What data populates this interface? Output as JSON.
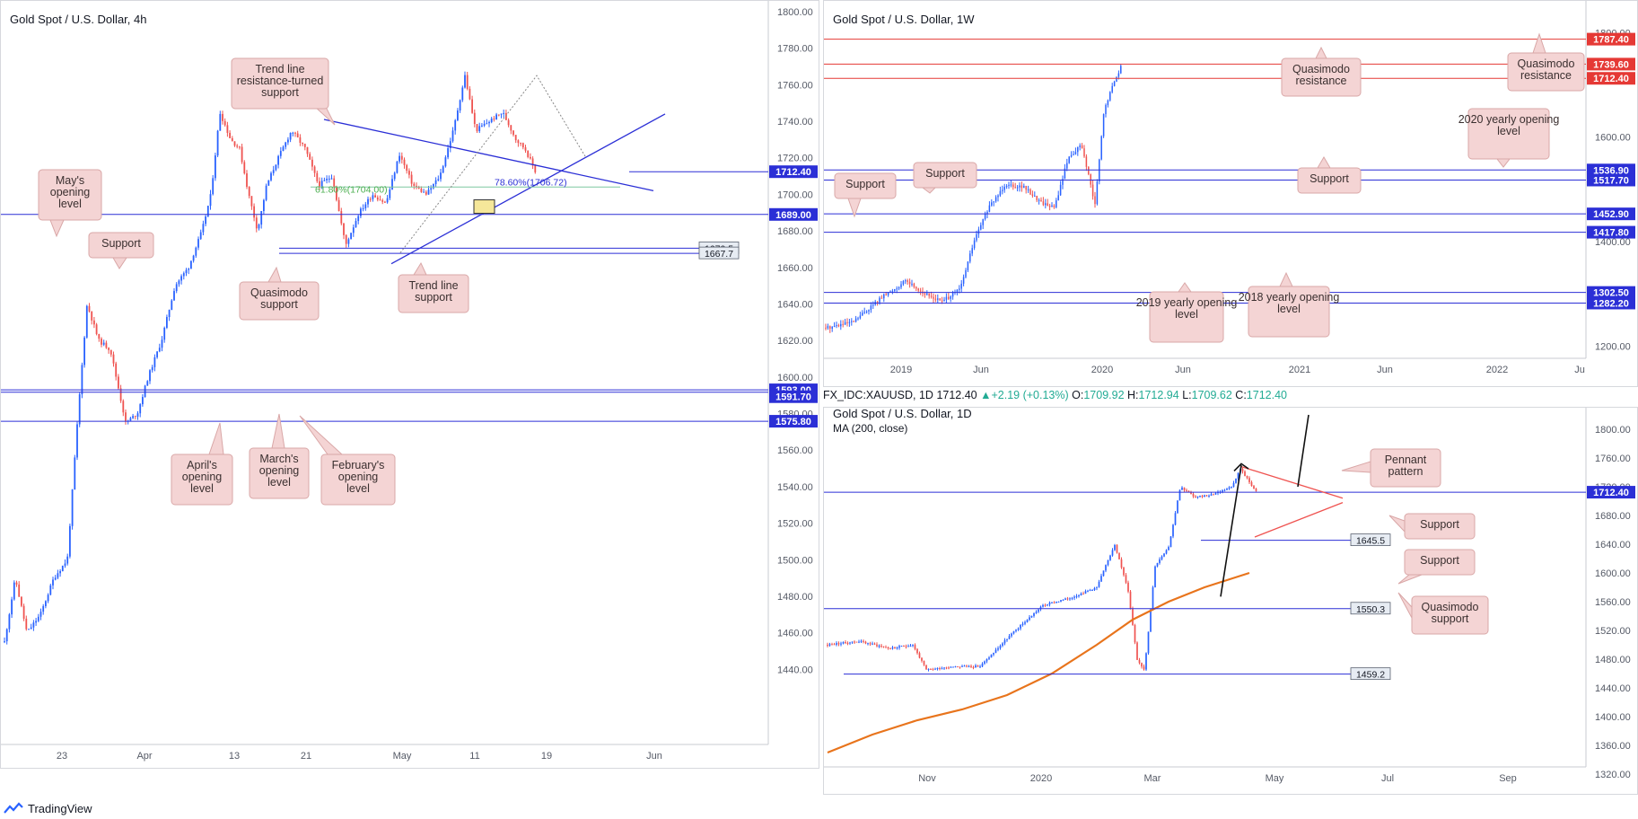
{
  "brand": {
    "name": "TradingView",
    "logo_icon": "tradingview-logo-icon"
  },
  "infobar": {
    "symbol": "FX_IDC:XAUUSD, 1D",
    "last": "1712.40",
    "change": "▲+2.19 (+0.13%)",
    "o_label": "O:",
    "o": "1709.92",
    "h_label": "H:",
    "h": "1712.94",
    "l_label": "L:",
    "l": "1709.62",
    "c_label": "C:",
    "c": "1712.40"
  },
  "colors": {
    "up": "#2962ff",
    "down": "#ef5350",
    "level": "#2b2fd6",
    "resistance": "#e53935",
    "callout_fill": "#f4d4d4",
    "callout_border": "#d9a7a7",
    "ma": "#e8741c"
  },
  "chart_data": [
    {
      "id": "h4",
      "type": "candlestick",
      "title": "Gold Spot / U.S. Dollar, 4h",
      "ylim": [
        1420,
        1800
      ],
      "yticks": [
        "1800.00",
        "1780.00",
        "1760.00",
        "1740.00",
        "1720.00",
        "1700.00",
        "1680.00",
        "1660.00",
        "1640.00",
        "1620.00",
        "1600.00",
        "1580.00",
        "1560.00",
        "1540.00",
        "1520.00",
        "1500.00",
        "1480.00",
        "1460.00",
        "1440.00"
      ],
      "xticks": [
        "23",
        "Apr",
        "13",
        "21",
        "May",
        "11",
        "19",
        "Jun"
      ],
      "price_path": [
        [
          0,
          1455
        ],
        [
          12,
          1490
        ],
        [
          25,
          1460
        ],
        [
          40,
          1470
        ],
        [
          55,
          1490
        ],
        [
          70,
          1500
        ],
        [
          82,
          1580
        ],
        [
          92,
          1640
        ],
        [
          105,
          1620
        ],
        [
          118,
          1615
        ],
        [
          135,
          1575
        ],
        [
          148,
          1580
        ],
        [
          160,
          1600
        ],
        [
          175,
          1620
        ],
        [
          190,
          1650
        ],
        [
          205,
          1660
        ],
        [
          220,
          1680
        ],
        [
          230,
          1700
        ],
        [
          240,
          1745
        ],
        [
          252,
          1730
        ],
        [
          262,
          1725
        ],
        [
          272,
          1700
        ],
        [
          282,
          1680
        ],
        [
          292,
          1705
        ],
        [
          305,
          1720
        ],
        [
          320,
          1735
        ],
        [
          335,
          1725
        ],
        [
          350,
          1705
        ],
        [
          365,
          1710
        ],
        [
          380,
          1672
        ],
        [
          395,
          1690
        ],
        [
          410,
          1700
        ],
        [
          425,
          1695
        ],
        [
          440,
          1722
        ],
        [
          455,
          1705
        ],
        [
          470,
          1700
        ],
        [
          485,
          1710
        ],
        [
          500,
          1735
        ],
        [
          513,
          1765
        ],
        [
          525,
          1735
        ],
        [
          540,
          1740
        ],
        [
          555,
          1745
        ],
        [
          570,
          1730
        ],
        [
          580,
          1725
        ],
        [
          592,
          1712
        ]
      ],
      "levels": [
        {
          "value": 1712.4,
          "label": "1712.40",
          "style": "blue-badge"
        },
        {
          "value": 1689.0,
          "label": "1689.00",
          "style": "blue-badge"
        },
        {
          "value": 1670.5,
          "label": "1670.5",
          "style": "grey-tag"
        },
        {
          "value": 1667.7,
          "label": "1667.7",
          "style": "grey-tag"
        },
        {
          "value": 1593.0,
          "label": "1593.00",
          "style": "blue-badge"
        },
        {
          "value": 1591.7,
          "label": "1591.70",
          "style": "blue-badge"
        },
        {
          "value": 1575.8,
          "label": "1575.80",
          "style": "blue-badge"
        }
      ],
      "fib_labels": [
        "61.80%(1704.00)",
        "78.60%(1706.72)"
      ],
      "annotations": [
        "Trend line resistance-turned support",
        "May's opening level",
        "Support",
        "Quasimodo support",
        "Trend line support",
        "April's opening level",
        "March's opening level",
        "February's opening level"
      ]
    },
    {
      "id": "w1",
      "type": "candlestick",
      "title": "Gold Spot / U.S. Dollar, 1W",
      "ylim": [
        1130,
        1840
      ],
      "yticks": [
        "1800.00",
        "1600.00",
        "1400.00",
        "1200.00"
      ],
      "xticks": [
        "2019",
        "Jun",
        "2020",
        "Jun",
        "2021",
        "Jun",
        "2022",
        "Ju"
      ],
      "price_path": [
        [
          0,
          1235
        ],
        [
          30,
          1245
        ],
        [
          60,
          1290
        ],
        [
          90,
          1325
        ],
        [
          110,
          1300
        ],
        [
          130,
          1285
        ],
        [
          150,
          1310
        ],
        [
          165,
          1400
        ],
        [
          180,
          1460
        ],
        [
          200,
          1510
        ],
        [
          220,
          1505
        ],
        [
          240,
          1475
        ],
        [
          255,
          1465
        ],
        [
          270,
          1560
        ],
        [
          285,
          1585
        ],
        [
          300,
          1470
        ],
        [
          310,
          1650
        ],
        [
          320,
          1700
        ],
        [
          330,
          1740
        ]
      ],
      "levels": [
        {
          "value": 1787.4,
          "label": "1787.40",
          "style": "red-badge"
        },
        {
          "value": 1739.6,
          "label": "1739.60",
          "style": "red-badge"
        },
        {
          "value": 1712.4,
          "label": "1712.40",
          "style": "red-badge"
        },
        {
          "value": 1536.9,
          "label": "1536.90",
          "style": "blue-badge"
        },
        {
          "value": 1517.7,
          "label": "1517.70",
          "style": "blue-badge"
        },
        {
          "value": 1452.9,
          "label": "1452.90",
          "style": "blue-badge"
        },
        {
          "value": 1417.8,
          "label": "1417.80",
          "style": "blue-badge"
        },
        {
          "value": 1302.5,
          "label": "1302.50",
          "style": "blue-badge"
        },
        {
          "value": 1282.2,
          "label": "1282.20",
          "style": "blue-badge"
        }
      ],
      "annotations": [
        "Quasimodo resistance",
        "Quasimodo resistance",
        "2020 yearly opening level",
        "Support",
        "Support",
        "Support",
        "2019 yearly opening level",
        "2018 yearly opening level"
      ]
    },
    {
      "id": "d1",
      "type": "candlestick",
      "title": "Gold Spot / U.S. Dollar, 1D",
      "indicator": "MA (200, close)",
      "ylim": [
        1305,
        1815
      ],
      "yticks": [
        "1800.00",
        "1760.00",
        "1720.00",
        "1680.00",
        "1640.00",
        "1600.00",
        "1560.00",
        "1520.00",
        "1480.00",
        "1440.00",
        "1400.00",
        "1360.00",
        "1320.00"
      ],
      "xticks": [
        "Nov",
        "2020",
        "Mar",
        "May",
        "Jul",
        "Sep"
      ],
      "price_path": [
        [
          0,
          1500
        ],
        [
          35,
          1505
        ],
        [
          70,
          1495
        ],
        [
          95,
          1500
        ],
        [
          110,
          1465
        ],
        [
          140,
          1470
        ],
        [
          170,
          1470
        ],
        [
          205,
          1515
        ],
        [
          240,
          1555
        ],
        [
          270,
          1565
        ],
        [
          300,
          1580
        ],
        [
          320,
          1640
        ],
        [
          335,
          1575
        ],
        [
          345,
          1480
        ],
        [
          353,
          1465
        ],
        [
          365,
          1610
        ],
        [
          380,
          1635
        ],
        [
          393,
          1720
        ],
        [
          410,
          1705
        ],
        [
          430,
          1710
        ],
        [
          450,
          1720
        ],
        [
          460,
          1745
        ],
        [
          478,
          1712
        ]
      ],
      "ma": [
        [
          0,
          1350
        ],
        [
          50,
          1375
        ],
        [
          100,
          1395
        ],
        [
          150,
          1410
        ],
        [
          200,
          1430
        ],
        [
          250,
          1460
        ],
        [
          300,
          1500
        ],
        [
          340,
          1535
        ],
        [
          380,
          1560
        ],
        [
          420,
          1580
        ],
        [
          470,
          1600
        ]
      ],
      "levels": [
        {
          "value": 1712.4,
          "label": "1712.40",
          "style": "blue-badge"
        },
        {
          "value": 1645.5,
          "label": "1645.5",
          "style": "grey-tag"
        },
        {
          "value": 1550.3,
          "label": "1550.3",
          "style": "grey-tag"
        },
        {
          "value": 1459.2,
          "label": "1459.2",
          "style": "grey-tag"
        }
      ],
      "annotations": [
        "Pennant pattern",
        "Support",
        "Support",
        "Quasimodo support"
      ]
    }
  ]
}
